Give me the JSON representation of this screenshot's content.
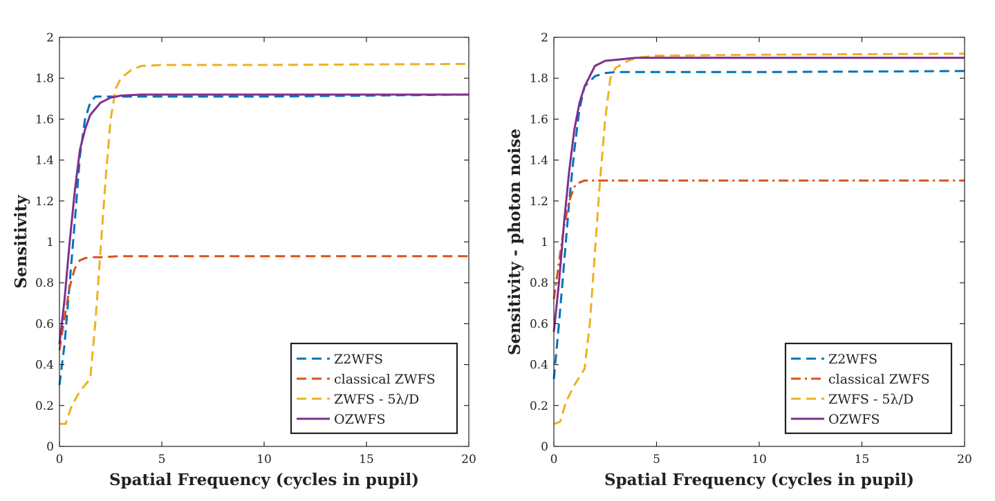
{
  "chart_data": [
    {
      "type": "line",
      "title": "",
      "xlabel": "Spatial Frequency (cycles in pupil)",
      "ylabel": "Sensitivity",
      "xlim": [
        0,
        20
      ],
      "ylim": [
        0,
        2
      ],
      "xticks": [
        "0",
        "5",
        "10",
        "15",
        "20"
      ],
      "yticks": [
        "0",
        "0.2",
        "0.4",
        "0.6",
        "0.8",
        "1",
        "1.2",
        "1.4",
        "1.6",
        "1.8",
        "2"
      ],
      "grid": false,
      "legend_position": "bottom-right",
      "series": [
        {
          "name": "Z2WFS",
          "color": "#0072BD",
          "style": "dashed",
          "x": [
            0,
            0.25,
            0.5,
            0.75,
            1.0,
            1.25,
            1.5,
            1.75,
            2.0,
            3.0,
            5,
            10,
            20
          ],
          "y": [
            0.3,
            0.5,
            0.8,
            1.1,
            1.42,
            1.6,
            1.68,
            1.71,
            1.71,
            1.71,
            1.71,
            1.71,
            1.72
          ]
        },
        {
          "name": "classical ZWFS",
          "color": "#D95319",
          "style": "dashed",
          "x": [
            0,
            0.25,
            0.5,
            0.75,
            1.0,
            1.25,
            1.5,
            2,
            3,
            5,
            10,
            20
          ],
          "y": [
            0.47,
            0.63,
            0.78,
            0.87,
            0.91,
            0.92,
            0.925,
            0.925,
            0.93,
            0.93,
            0.93,
            0.93
          ]
        },
        {
          "name": "ZWFS - 5λ/D",
          "color": "#EDB120",
          "style": "dashed",
          "x": [
            0,
            0.3,
            0.6,
            1.0,
            1.5,
            1.75,
            2.0,
            2.25,
            2.5,
            2.75,
            3.0,
            3.5,
            4.0,
            5,
            10,
            20
          ],
          "y": [
            0.11,
            0.11,
            0.2,
            0.27,
            0.33,
            0.6,
            0.95,
            1.3,
            1.6,
            1.75,
            1.8,
            1.84,
            1.86,
            1.865,
            1.865,
            1.87
          ]
        },
        {
          "name": "OZWFS",
          "color": "#7E2F8E",
          "style": "solid",
          "x": [
            0,
            0.25,
            0.5,
            0.75,
            1.0,
            1.25,
            1.5,
            2.0,
            2.5,
            3.0,
            4.0,
            5,
            10,
            20
          ],
          "y": [
            0.5,
            0.72,
            1.0,
            1.25,
            1.45,
            1.55,
            1.62,
            1.68,
            1.705,
            1.715,
            1.72,
            1.72,
            1.72,
            1.72
          ]
        }
      ]
    },
    {
      "type": "line",
      "title": "",
      "xlabel": "Spatial Frequency (cycles in pupil)",
      "ylabel": "Sensitivity - photon noise",
      "xlim": [
        0,
        20
      ],
      "ylim": [
        0,
        2
      ],
      "xticks": [
        "0",
        "5",
        "10",
        "15",
        "20"
      ],
      "yticks": [
        "0",
        "0.2",
        "0.4",
        "0.6",
        "0.8",
        "1",
        "1.2",
        "1.4",
        "1.6",
        "1.8",
        "2"
      ],
      "grid": false,
      "legend_position": "bottom-right",
      "series": [
        {
          "name": "Z2WFS",
          "color": "#0072BD",
          "style": "dashed",
          "x": [
            0,
            0.25,
            0.5,
            0.75,
            1.0,
            1.25,
            1.5,
            2.0,
            2.5,
            3.0,
            5,
            10,
            20
          ],
          "y": [
            0.33,
            0.6,
            0.9,
            1.2,
            1.45,
            1.65,
            1.76,
            1.81,
            1.825,
            1.83,
            1.83,
            1.83,
            1.835
          ]
        },
        {
          "name": "classical ZWFS",
          "color": "#D95319",
          "style": "dashdot",
          "x": [
            0,
            0.25,
            0.5,
            0.75,
            1.0,
            1.25,
            1.5,
            2,
            3,
            5,
            10,
            20
          ],
          "y": [
            0.72,
            0.9,
            1.08,
            1.2,
            1.27,
            1.29,
            1.3,
            1.3,
            1.3,
            1.3,
            1.3,
            1.3
          ]
        },
        {
          "name": "ZWFS - 5λ/D",
          "color": "#EDB120",
          "style": "dashed",
          "x": [
            0,
            0.3,
            0.6,
            1.0,
            1.5,
            1.75,
            2.0,
            2.25,
            2.5,
            2.75,
            3.0,
            3.5,
            4.0,
            5,
            10,
            20
          ],
          "y": [
            0.11,
            0.12,
            0.22,
            0.3,
            0.38,
            0.6,
            0.95,
            1.3,
            1.6,
            1.8,
            1.85,
            1.88,
            1.9,
            1.91,
            1.915,
            1.92
          ]
        },
        {
          "name": "OZWFS",
          "color": "#7E2F8E",
          "style": "solid",
          "x": [
            0,
            0.25,
            0.5,
            0.75,
            1.0,
            1.25,
            1.5,
            2.0,
            2.5,
            3.0,
            3.5,
            4.0,
            5,
            10,
            20
          ],
          "y": [
            0.56,
            0.8,
            1.1,
            1.35,
            1.55,
            1.68,
            1.76,
            1.86,
            1.885,
            1.89,
            1.895,
            1.9,
            1.9,
            1.9,
            1.9
          ]
        }
      ]
    }
  ]
}
